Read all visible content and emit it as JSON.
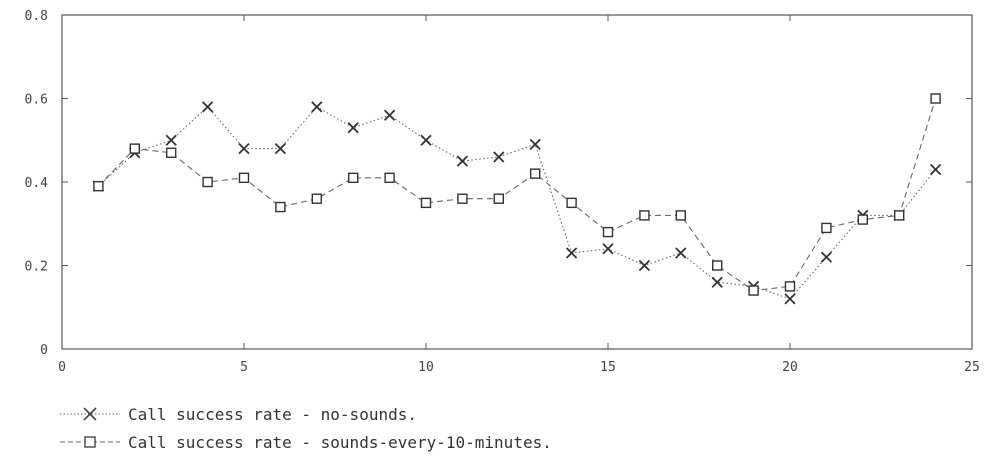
{
  "chart_data": {
    "type": "line",
    "title": "",
    "xlabel": "",
    "ylabel": "",
    "xlim": [
      0,
      25
    ],
    "ylim": [
      0,
      0.8
    ],
    "xticks": [
      "0",
      "5",
      "10",
      "15",
      "20",
      "25"
    ],
    "yticks": [
      "0",
      "0.2",
      "0.4",
      "0.6",
      "0.8"
    ],
    "grid": false,
    "legend_position": "bottom-left",
    "x": [
      1,
      2,
      3,
      4,
      5,
      6,
      7,
      8,
      9,
      10,
      11,
      12,
      13,
      14,
      15,
      16,
      17,
      18,
      19,
      20,
      21,
      22,
      23,
      24
    ],
    "series": [
      {
        "name": "Call success rate - no-sounds.",
        "marker": "x",
        "line": "dotted",
        "values": [
          0.39,
          0.47,
          0.5,
          0.58,
          0.48,
          0.48,
          0.58,
          0.53,
          0.56,
          0.5,
          0.45,
          0.46,
          0.49,
          0.23,
          0.24,
          0.2,
          0.23,
          0.16,
          0.15,
          0.12,
          0.22,
          0.32,
          0.32,
          0.43
        ]
      },
      {
        "name": "Call success rate - sounds-every-10-minutes.",
        "marker": "square",
        "line": "dashed",
        "values": [
          0.39,
          0.48,
          0.47,
          0.4,
          0.41,
          0.34,
          0.36,
          0.41,
          0.41,
          0.35,
          0.36,
          0.36,
          0.42,
          0.35,
          0.28,
          0.32,
          0.32,
          0.2,
          0.14,
          0.15,
          0.29,
          0.31,
          0.32,
          0.6
        ]
      }
    ]
  }
}
